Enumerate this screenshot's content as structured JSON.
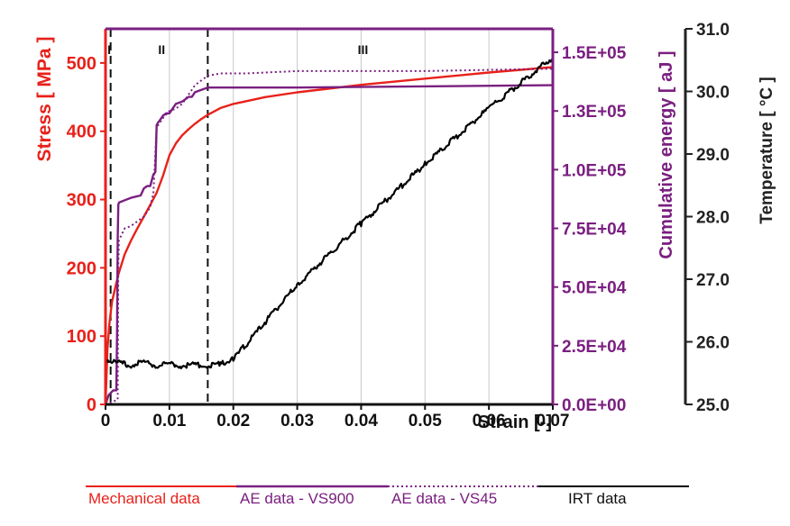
{
  "chart_data": {
    "type": "line",
    "xlabel": "Strain [-]",
    "xlim": [
      0,
      0.07
    ],
    "x_ticks": [
      "0",
      "0.01",
      "0.02",
      "0.03",
      "0.04",
      "0.05",
      "0.06",
      "0.07"
    ],
    "y_left": {
      "label": "Stress [ MPa ]",
      "lim": [
        0,
        550
      ],
      "ticks": [
        "0",
        "100",
        "200",
        "300",
        "400",
        "500"
      ],
      "color": "#e8211a"
    },
    "y_right": {
      "label": "Cumulative energy [ aJ ]",
      "lim": [
        0,
        160000
      ],
      "ticks": [
        "0.0E+00",
        "2.5E+04",
        "5.0E+04",
        "7.5E+04",
        "1.0E+05",
        "1.3E+05",
        "1.5E+05"
      ],
      "color": "#7a1f80"
    },
    "y_far_right": {
      "label": "Temperature [ °C ]",
      "lim": [
        25.0,
        31.0
      ],
      "ticks": [
        "25.0",
        "26.0",
        "27.0",
        "28.0",
        "29.0",
        "30.0",
        "31.0"
      ],
      "color": "#222222"
    },
    "grid": "vertical",
    "regions": [
      {
        "label": "I",
        "x": 0.0003
      },
      {
        "label": "II",
        "x": 0.0085
      },
      {
        "label": "III",
        "x": 0.04
      }
    ],
    "region_boundaries_x": [
      0.0008,
      0.016
    ],
    "legend_placement": "bottom",
    "series": [
      {
        "name": "Mechanical data",
        "axis": "left",
        "color": "#e8211a",
        "style": "solid",
        "x": [
          0,
          0.0003,
          0.0006,
          0.001,
          0.002,
          0.003,
          0.004,
          0.005,
          0.006,
          0.007,
          0.008,
          0.009,
          0.01,
          0.011,
          0.012,
          0.013,
          0.014,
          0.015,
          0.016,
          0.018,
          0.02,
          0.025,
          0.03,
          0.04,
          0.05,
          0.06,
          0.07
        ],
        "y": [
          0,
          80,
          118,
          150,
          190,
          220,
          240,
          258,
          275,
          292,
          310,
          335,
          365,
          382,
          394,
          403,
          411,
          418,
          424,
          434,
          440,
          450,
          457,
          468,
          477,
          486,
          494
        ]
      },
      {
        "name": "AE data - VS900",
        "axis": "right",
        "color": "#7a1f80",
        "style": "solid",
        "x": [
          0,
          0.0005,
          0.0012,
          0.0017,
          0.0018,
          0.0019,
          0.002,
          0.0021,
          0.003,
          0.004,
          0.0055,
          0.006,
          0.0065,
          0.007,
          0.0075,
          0.0078,
          0.008,
          0.0082,
          0.0085,
          0.009,
          0.0095,
          0.01,
          0.0105,
          0.011,
          0.012,
          0.013,
          0.0135,
          0.014,
          0.015,
          0.016,
          0.017,
          0.02,
          0.03,
          0.07
        ],
        "y": [
          0,
          4000,
          6000,
          6000,
          30000,
          70000,
          85000,
          86000,
          87000,
          88000,
          89000,
          92000,
          93000,
          93000,
          98000,
          99000,
          119000,
          120000,
          121000,
          123000,
          124000,
          124000,
          126000,
          128000,
          129000,
          131000,
          131000,
          133000,
          134000,
          135000,
          135000,
          135000,
          135000,
          136000
        ]
      },
      {
        "name": "AE data - VS45",
        "axis": "right",
        "color": "#7a1f80",
        "style": "dotted",
        "x": [
          0,
          0.001,
          0.0019,
          0.002,
          0.0021,
          0.003,
          0.004,
          0.005,
          0.006,
          0.007,
          0.0075,
          0.008,
          0.0085,
          0.009,
          0.01,
          0.011,
          0.012,
          0.013,
          0.014,
          0.015,
          0.016,
          0.018,
          0.022,
          0.03,
          0.05,
          0.07
        ],
        "y": [
          0,
          1000,
          2000,
          60000,
          70000,
          75000,
          76000,
          78000,
          80000,
          84000,
          90000,
          118000,
          120000,
          122000,
          125000,
          126000,
          128000,
          132000,
          136000,
          138000,
          140000,
          141000,
          141000,
          142000,
          142000,
          143000
        ]
      },
      {
        "name": "IRT data",
        "axis": "far_right",
        "color": "#000000",
        "style": "solid",
        "x": [
          0,
          0.002,
          0.004,
          0.006,
          0.008,
          0.01,
          0.012,
          0.014,
          0.016,
          0.018,
          0.02,
          0.03,
          0.04,
          0.05,
          0.06,
          0.07
        ],
        "y": [
          25.72,
          25.66,
          25.63,
          25.68,
          25.62,
          25.65,
          25.62,
          25.64,
          25.61,
          25.64,
          25.72,
          26.91,
          27.89,
          28.84,
          29.73,
          30.55
        ]
      }
    ]
  }
}
